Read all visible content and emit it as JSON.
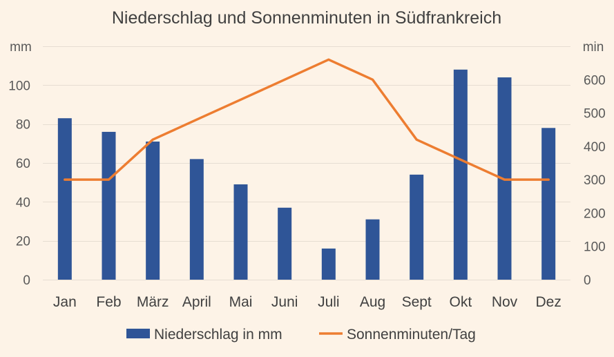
{
  "chart_data": {
    "type": "bar-line-combo",
    "title": "Niederschlag und Sonnenminuten in Südfrankreich",
    "categories": [
      "Jan",
      "Feb",
      "März",
      "April",
      "Mai",
      "Juni",
      "Juli",
      "Aug",
      "Sept",
      "Okt",
      "Nov",
      "Dez"
    ],
    "y_left": {
      "unit_label": "mm",
      "ylim": [
        0,
        120
      ],
      "ticks": [
        0,
        20,
        40,
        60,
        80,
        100
      ]
    },
    "y_right": {
      "unit_label": "min",
      "ylim": [
        0,
        700
      ],
      "ticks": [
        0,
        100,
        200,
        300,
        400,
        500,
        600
      ]
    },
    "grid": true,
    "legend_position": "bottom",
    "series": [
      {
        "name": "Niederschlag in mm",
        "kind": "bar",
        "axis": "left",
        "color": "#2f5597",
        "values": [
          83,
          76,
          71,
          62,
          49,
          37,
          16,
          31,
          54,
          108,
          104,
          78
        ]
      },
      {
        "name": "Sonnenminuten/Tag",
        "kind": "line",
        "axis": "right",
        "color": "#ed7d31",
        "values": [
          300,
          300,
          420,
          480,
          540,
          600,
          660,
          600,
          420,
          360,
          300,
          300
        ]
      }
    ]
  }
}
